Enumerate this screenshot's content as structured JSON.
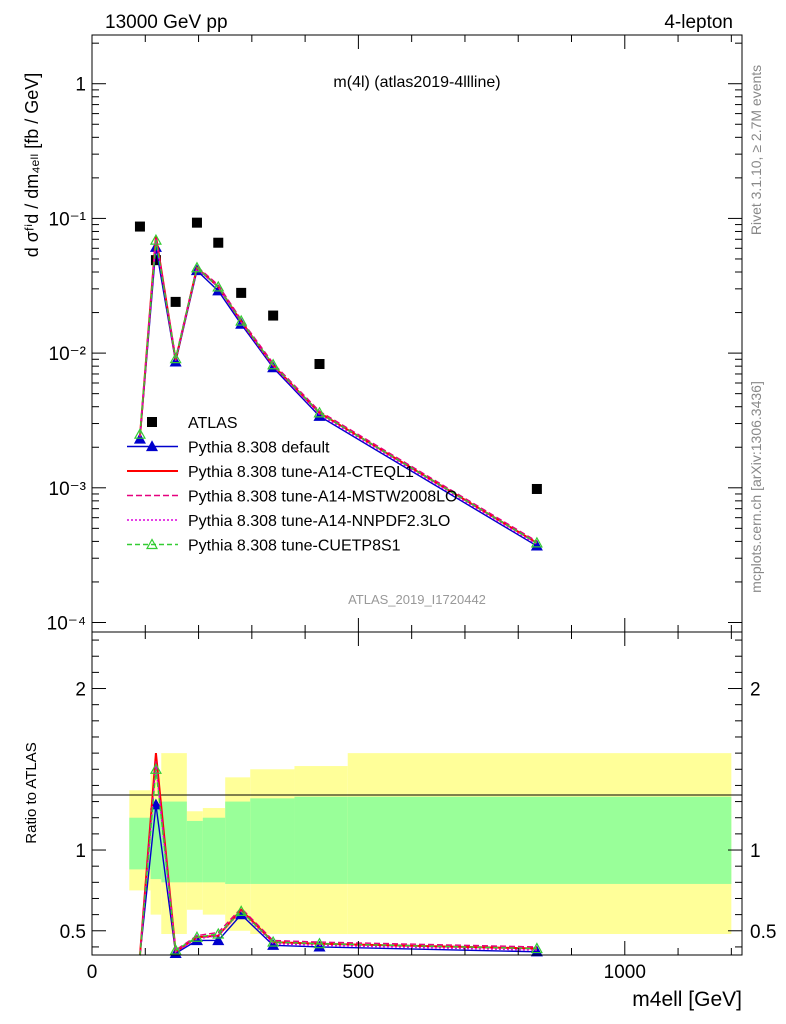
{
  "header": {
    "energy_label": "13000 GeV pp",
    "process_label": "4-lepton",
    "plot_title": "m(4l) (atlas2019-4llline)",
    "analysis_id": "ATLAS_2019_I1720442",
    "rivet_label": "Rivet 3.1.10, ≥ 2.7M events",
    "site_label": "mcplots.cern.ch [arXiv:1306.3436]"
  },
  "axes": {
    "main_ylabel": "d σᶠⁱd / dm₄ₑₗₗ [fb / GeV]",
    "ratio_ylabel": "Ratio to ATLAS",
    "xlabel": "m4ell [GeV]",
    "main_yticks": [
      "10⁻⁴",
      "10⁻³",
      "10⁻²",
      "10⁻¹",
      "1"
    ],
    "ratio_yticks": [
      "0.5",
      "1",
      "2"
    ],
    "xticks": [
      "0",
      "500",
      "1000"
    ]
  },
  "chart_data": [
    {
      "type": "scatter",
      "panel": "main",
      "yscale": "log",
      "xlim": [
        0,
        1220
      ],
      "ylim": [
        8.5e-05,
        2.3
      ],
      "x_bins": [
        [
          80,
          115
        ],
        [
          115,
          130
        ],
        [
          130,
          165
        ],
        [
          165,
          210
        ],
        [
          210,
          250
        ],
        [
          250,
          300
        ],
        [
          300,
          380
        ],
        [
          380,
          480
        ],
        [
          480,
          1200
        ]
      ],
      "series": [
        {
          "name": "ATLAS",
          "color": "#000000",
          "marker": "square",
          "x": [
            90,
            120,
            157,
            197,
            237,
            280,
            340,
            427,
            835
          ],
          "y": [
            0.087,
            0.049,
            0.024,
            0.093,
            0.066,
            0.028,
            0.019,
            0.0083,
            0.00098
          ]
        },
        {
          "name": "Pythia 8.308 default",
          "color": "#0000cc",
          "marker": "triangle",
          "x": [
            90,
            120,
            157,
            197,
            237,
            280,
            340,
            427,
            835
          ],
          "y": [
            0.0023,
            0.061,
            0.0086,
            0.041,
            0.029,
            0.0164,
            0.0078,
            0.0034,
            0.00037
          ]
        },
        {
          "name": "Pythia 8.308 tune-A14-CTEQL1",
          "color": "#ff0000",
          "marker": "none",
          "x": [
            90,
            120,
            157,
            197,
            237,
            280,
            340,
            427,
            835
          ],
          "y": [
            0.0024,
            0.074,
            0.0089,
            0.043,
            0.031,
            0.0172,
            0.0081,
            0.0036,
            0.00039
          ]
        },
        {
          "name": "Pythia 8.308 tune-A14-MSTW2008LO",
          "color": "#e6007e",
          "marker": "none",
          "x": [
            90,
            120,
            157,
            197,
            237,
            280,
            340,
            427,
            835
          ],
          "y": [
            0.0025,
            0.072,
            0.0092,
            0.044,
            0.032,
            0.0177,
            0.0084,
            0.0037,
            0.0004
          ]
        },
        {
          "name": "Pythia 8.308 tune-A14-NNPDF2.3LO",
          "color": "#dd00dd",
          "marker": "none",
          "x": [
            90,
            120,
            157,
            197,
            237,
            280,
            340,
            427,
            835
          ],
          "y": [
            0.0024,
            0.07,
            0.0088,
            0.042,
            0.031,
            0.0169,
            0.008,
            0.0035,
            0.00038
          ]
        },
        {
          "name": "Pythia 8.308 tune-CUETP8S1",
          "color": "#33cc33",
          "marker": "open-triangle",
          "x": [
            90,
            120,
            157,
            197,
            237,
            280,
            340,
            427,
            835
          ],
          "y": [
            0.0025,
            0.069,
            0.0091,
            0.043,
            0.031,
            0.0173,
            0.0082,
            0.0036,
            0.00039
          ]
        }
      ]
    },
    {
      "type": "line",
      "panel": "ratio",
      "yscale": "linear",
      "xlim": [
        0,
        1220
      ],
      "ylim": [
        0.35,
        2.35
      ],
      "x_bins": [
        [
          70,
          110
        ],
        [
          110,
          130
        ],
        [
          130,
          178
        ],
        [
          178,
          208
        ],
        [
          208,
          250
        ],
        [
          250,
          297
        ],
        [
          297,
          380
        ],
        [
          380,
          480
        ],
        [
          480,
          1200
        ]
      ],
      "bands": {
        "outer": {
          "color": "#ffff99",
          "low": [
            0.75,
            0.6,
            0.48,
            0.63,
            0.6,
            0.5,
            0.48,
            0.48,
            0.48
          ],
          "high": [
            1.37,
            1.48,
            1.6,
            1.24,
            1.26,
            1.45,
            1.5,
            1.52,
            1.6
          ]
        },
        "inner": {
          "color": "#99ff99",
          "low": [
            0.88,
            0.82,
            0.8,
            0.8,
            0.8,
            0.79,
            0.79,
            0.79,
            0.79
          ],
          "high": [
            1.2,
            1.28,
            1.3,
            1.18,
            1.2,
            1.3,
            1.32,
            1.33,
            1.33
          ]
        }
      },
      "reference_line": 1,
      "series": [
        {
          "name": "Pythia 8.308 default",
          "color": "#0000cc",
          "marker": "triangle",
          "x": [
            90,
            120,
            157,
            197,
            237,
            280,
            340,
            427,
            835
          ],
          "y": [
            0.026,
            1.28,
            0.36,
            0.44,
            0.44,
            0.6,
            0.41,
            0.4,
            0.37
          ]
        },
        {
          "name": "Pythia 8.308 tune-A14-CTEQL1",
          "color": "#ff0000",
          "marker": "none",
          "x": [
            90,
            120,
            157,
            197,
            237,
            280,
            340,
            427,
            835
          ],
          "y": [
            0.028,
            1.6,
            0.37,
            0.46,
            0.47,
            0.63,
            0.43,
            0.42,
            0.39
          ]
        },
        {
          "name": "Pythia 8.308 tune-A14-MSTW2008LO",
          "color": "#e6007e",
          "marker": "none",
          "x": [
            90,
            120,
            157,
            197,
            237,
            280,
            340,
            427,
            835
          ],
          "y": [
            0.029,
            1.55,
            0.38,
            0.47,
            0.49,
            0.64,
            0.44,
            0.43,
            0.4
          ]
        },
        {
          "name": "Pythia 8.308 tune-A14-NNPDF2.3LO",
          "color": "#dd00dd",
          "marker": "none",
          "x": [
            90,
            120,
            157,
            197,
            237,
            280,
            340,
            427,
            835
          ],
          "y": [
            0.028,
            1.52,
            0.37,
            0.45,
            0.47,
            0.62,
            0.42,
            0.41,
            0.38
          ]
        },
        {
          "name": "Pythia 8.308 tune-CUETP8S1",
          "color": "#33cc33",
          "marker": "open-triangle",
          "x": [
            90,
            120,
            157,
            197,
            237,
            280,
            340,
            427,
            835
          ],
          "y": [
            0.029,
            1.5,
            0.38,
            0.46,
            0.48,
            0.62,
            0.43,
            0.42,
            0.39
          ]
        }
      ]
    }
  ]
}
